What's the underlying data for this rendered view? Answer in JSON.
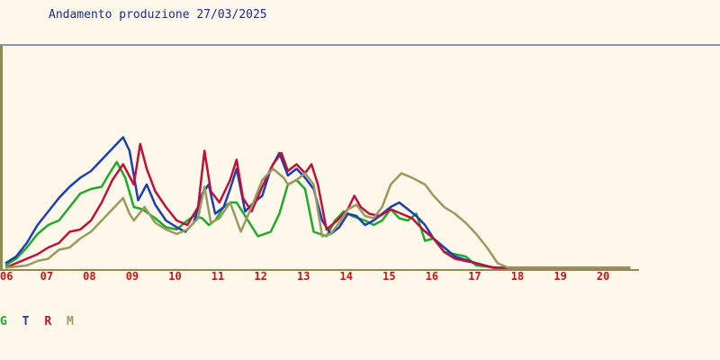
{
  "chart_data": {
    "type": "line",
    "title": "Andamento produzione 27/03/2025",
    "xlabel": "",
    "ylabel": "",
    "x_ticks": [
      "06",
      "07",
      "08",
      "09",
      "10",
      "11",
      "12",
      "13",
      "14",
      "15",
      "16",
      "17",
      "18",
      "19",
      "20"
    ],
    "xlim": [
      6.0,
      20.8
    ],
    "ylim": [
      0,
      100
    ],
    "grid": false,
    "legend_position": "bottom-left",
    "axis_color": "#8e8c50",
    "title_color": "#1a2a9a",
    "tick_color": "#cc1111",
    "series": [
      {
        "name": "G",
        "color": "#1faa2a",
        "points": [
          [
            6.0,
            2
          ],
          [
            6.25,
            5
          ],
          [
            6.5,
            10
          ],
          [
            6.75,
            16
          ],
          [
            7.0,
            20
          ],
          [
            7.25,
            22
          ],
          [
            7.5,
            28
          ],
          [
            7.75,
            34
          ],
          [
            8.0,
            36
          ],
          [
            8.25,
            37
          ],
          [
            8.4,
            42
          ],
          [
            8.6,
            48
          ],
          [
            8.8,
            41
          ],
          [
            9.0,
            28
          ],
          [
            9.2,
            27
          ],
          [
            9.5,
            23
          ],
          [
            9.75,
            19
          ],
          [
            10.0,
            18
          ],
          [
            10.25,
            22
          ],
          [
            10.4,
            24
          ],
          [
            10.6,
            23
          ],
          [
            10.75,
            20
          ],
          [
            10.9,
            22
          ],
          [
            11.1,
            28
          ],
          [
            11.25,
            30
          ],
          [
            11.4,
            30
          ],
          [
            11.6,
            24
          ],
          [
            11.9,
            15
          ],
          [
            12.2,
            17
          ],
          [
            12.4,
            25
          ],
          [
            12.6,
            38
          ],
          [
            12.8,
            40
          ],
          [
            13.0,
            36
          ],
          [
            13.2,
            17
          ],
          [
            13.5,
            15
          ],
          [
            13.7,
            22
          ],
          [
            13.9,
            26
          ],
          [
            14.1,
            24
          ],
          [
            14.4,
            22
          ],
          [
            14.6,
            20
          ],
          [
            14.8,
            22
          ],
          [
            15.0,
            27
          ],
          [
            15.2,
            23
          ],
          [
            15.4,
            22
          ],
          [
            15.6,
            25
          ],
          [
            15.8,
            13
          ],
          [
            16.0,
            14
          ],
          [
            16.25,
            8
          ],
          [
            16.5,
            7
          ],
          [
            16.75,
            6
          ],
          [
            17.0,
            2
          ],
          [
            17.5,
            1
          ],
          [
            18.0,
            1
          ],
          [
            19.0,
            1
          ],
          [
            20.0,
            1
          ],
          [
            20.6,
            1
          ]
        ]
      },
      {
        "name": "T",
        "color": "#1c3eb4",
        "points": [
          [
            6.0,
            3
          ],
          [
            6.25,
            6
          ],
          [
            6.5,
            12
          ],
          [
            6.75,
            20
          ],
          [
            7.0,
            26
          ],
          [
            7.25,
            32
          ],
          [
            7.5,
            37
          ],
          [
            7.75,
            41
          ],
          [
            8.0,
            44
          ],
          [
            8.25,
            49
          ],
          [
            8.5,
            54
          ],
          [
            8.75,
            59
          ],
          [
            8.9,
            53
          ],
          [
            9.0,
            42
          ],
          [
            9.1,
            31
          ],
          [
            9.3,
            38
          ],
          [
            9.5,
            29
          ],
          [
            9.75,
            22
          ],
          [
            10.0,
            19
          ],
          [
            10.2,
            17
          ],
          [
            10.4,
            21
          ],
          [
            10.6,
            34
          ],
          [
            10.75,
            38
          ],
          [
            10.9,
            25
          ],
          [
            11.1,
            28
          ],
          [
            11.25,
            36
          ],
          [
            11.4,
            45
          ],
          [
            11.6,
            26
          ],
          [
            11.8,
            30
          ],
          [
            12.0,
            33
          ],
          [
            12.2,
            45
          ],
          [
            12.4,
            52
          ],
          [
            12.6,
            42
          ],
          [
            12.8,
            45
          ],
          [
            13.0,
            41
          ],
          [
            13.2,
            36
          ],
          [
            13.4,
            22
          ],
          [
            13.6,
            16
          ],
          [
            13.8,
            19
          ],
          [
            14.0,
            25
          ],
          [
            14.2,
            24
          ],
          [
            14.4,
            20
          ],
          [
            14.6,
            22
          ],
          [
            14.8,
            25
          ],
          [
            15.0,
            28
          ],
          [
            15.2,
            30
          ],
          [
            15.4,
            27
          ],
          [
            15.6,
            24
          ],
          [
            15.8,
            20
          ],
          [
            16.0,
            14
          ],
          [
            16.25,
            10
          ],
          [
            16.5,
            6
          ],
          [
            17.0,
            3
          ],
          [
            17.4,
            1
          ],
          [
            18.0,
            1
          ],
          [
            19.0,
            1
          ],
          [
            20.0,
            1
          ],
          [
            20.6,
            1
          ]
        ]
      },
      {
        "name": "R",
        "color": "#c0103a",
        "points": [
          [
            6.0,
            1
          ],
          [
            6.25,
            3
          ],
          [
            6.5,
            5
          ],
          [
            6.75,
            7
          ],
          [
            7.0,
            10
          ],
          [
            7.25,
            12
          ],
          [
            7.5,
            17
          ],
          [
            7.75,
            18
          ],
          [
            8.0,
            22
          ],
          [
            8.25,
            30
          ],
          [
            8.5,
            40
          ],
          [
            8.75,
            47
          ],
          [
            9.0,
            38
          ],
          [
            9.15,
            56
          ],
          [
            9.3,
            45
          ],
          [
            9.5,
            35
          ],
          [
            9.75,
            28
          ],
          [
            10.0,
            22
          ],
          [
            10.25,
            20
          ],
          [
            10.5,
            28
          ],
          [
            10.65,
            53
          ],
          [
            10.8,
            35
          ],
          [
            11.0,
            30
          ],
          [
            11.25,
            40
          ],
          [
            11.4,
            49
          ],
          [
            11.55,
            32
          ],
          [
            11.75,
            26
          ],
          [
            12.0,
            37
          ],
          [
            12.25,
            47
          ],
          [
            12.45,
            52
          ],
          [
            12.6,
            44
          ],
          [
            12.8,
            47
          ],
          [
            13.0,
            43
          ],
          [
            13.15,
            47
          ],
          [
            13.3,
            38
          ],
          [
            13.5,
            18
          ],
          [
            13.75,
            22
          ],
          [
            14.0,
            27
          ],
          [
            14.15,
            33
          ],
          [
            14.3,
            28
          ],
          [
            14.5,
            25
          ],
          [
            14.75,
            24
          ],
          [
            15.0,
            27
          ],
          [
            15.25,
            25
          ],
          [
            15.5,
            23
          ],
          [
            15.75,
            18
          ],
          [
            16.0,
            14
          ],
          [
            16.25,
            8
          ],
          [
            16.5,
            5
          ],
          [
            17.0,
            3
          ],
          [
            17.4,
            1
          ],
          [
            18.0,
            1
          ],
          [
            19.0,
            1
          ],
          [
            20.0,
            1
          ],
          [
            20.6,
            1
          ]
        ]
      },
      {
        "name": "M",
        "color": "#9a9a60",
        "points": [
          [
            6.0,
            1
          ],
          [
            6.5,
            2
          ],
          [
            6.75,
            4
          ],
          [
            7.0,
            5
          ],
          [
            7.25,
            9
          ],
          [
            7.5,
            10
          ],
          [
            7.75,
            14
          ],
          [
            8.0,
            17
          ],
          [
            8.25,
            22
          ],
          [
            8.5,
            27
          ],
          [
            8.75,
            32
          ],
          [
            8.9,
            25
          ],
          [
            9.0,
            22
          ],
          [
            9.25,
            28
          ],
          [
            9.5,
            21
          ],
          [
            9.75,
            18
          ],
          [
            10.0,
            16
          ],
          [
            10.25,
            18
          ],
          [
            10.5,
            23
          ],
          [
            10.65,
            37
          ],
          [
            10.8,
            21
          ],
          [
            11.0,
            23
          ],
          [
            11.25,
            30
          ],
          [
            11.5,
            17
          ],
          [
            11.75,
            28
          ],
          [
            12.0,
            40
          ],
          [
            12.25,
            45
          ],
          [
            12.5,
            41
          ],
          [
            12.6,
            38
          ],
          [
            12.8,
            40
          ],
          [
            13.0,
            43
          ],
          [
            13.2,
            38
          ],
          [
            13.4,
            15
          ],
          [
            13.6,
            16
          ],
          [
            13.8,
            21
          ],
          [
            14.0,
            27
          ],
          [
            14.2,
            29
          ],
          [
            14.4,
            24
          ],
          [
            14.6,
            23
          ],
          [
            14.8,
            28
          ],
          [
            15.0,
            38
          ],
          [
            15.25,
            43
          ],
          [
            15.5,
            41
          ],
          [
            15.8,
            38
          ],
          [
            16.0,
            33
          ],
          [
            16.25,
            28
          ],
          [
            16.5,
            25
          ],
          [
            16.75,
            21
          ],
          [
            17.0,
            16
          ],
          [
            17.25,
            10
          ],
          [
            17.5,
            3
          ],
          [
            17.75,
            1
          ],
          [
            18.0,
            1
          ],
          [
            19.0,
            1
          ],
          [
            20.0,
            1
          ],
          [
            20.6,
            1
          ]
        ]
      }
    ]
  }
}
